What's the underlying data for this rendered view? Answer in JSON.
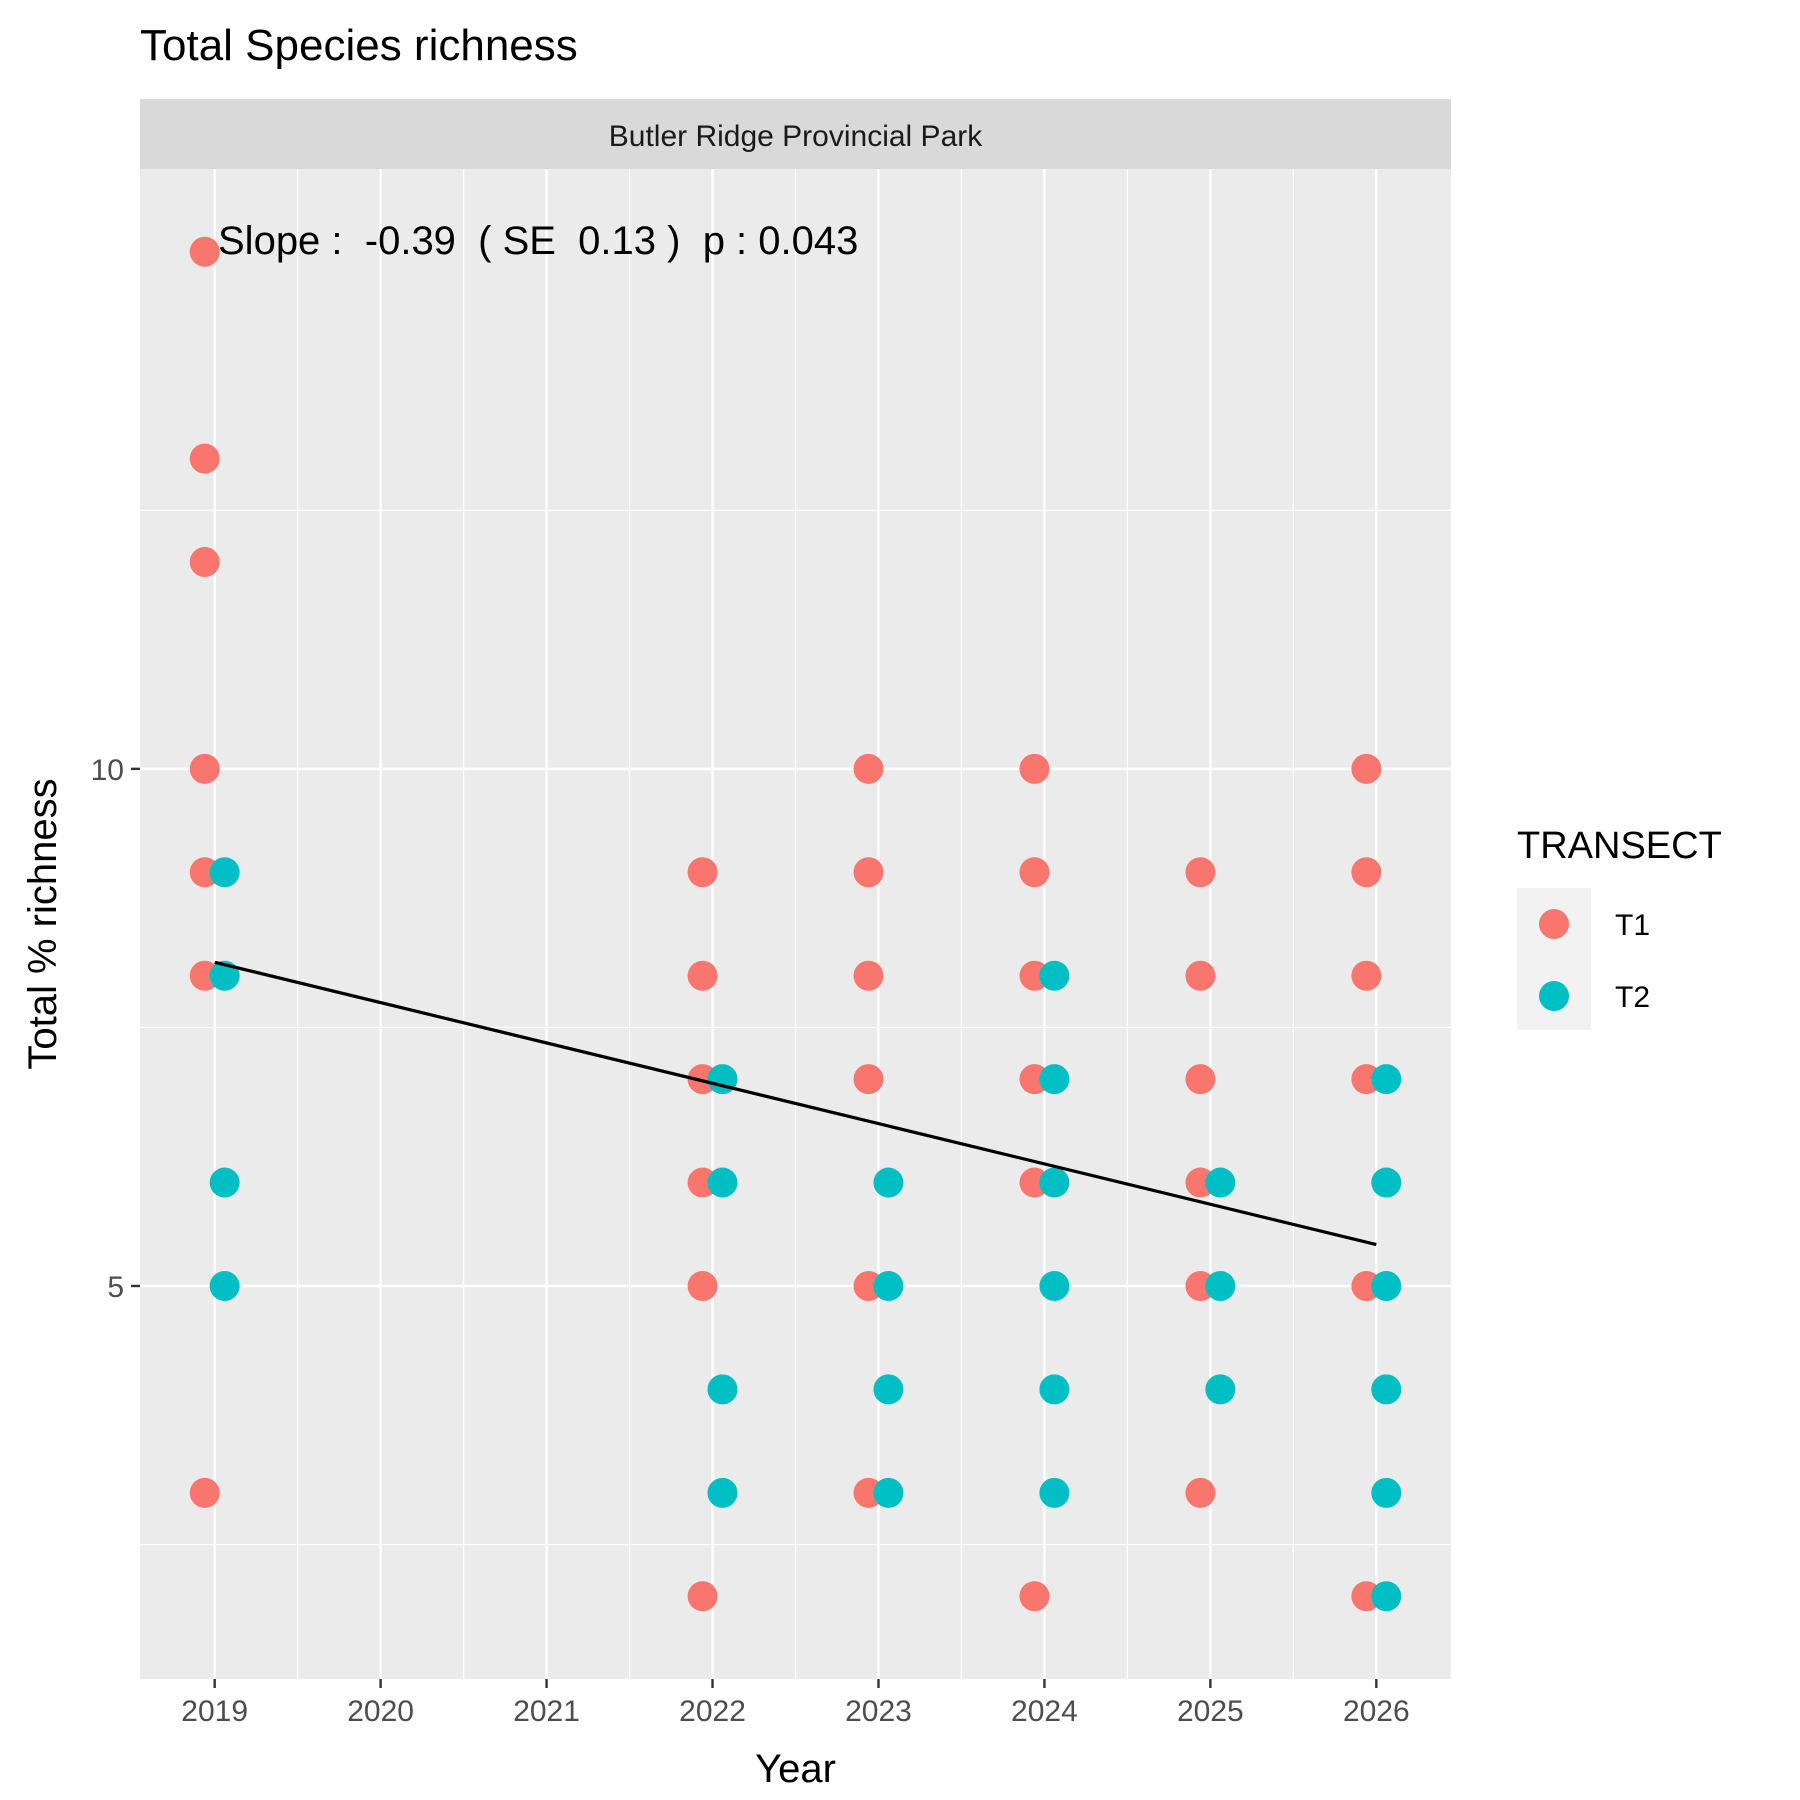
{
  "chart_data": {
    "type": "scatter",
    "title": "Total Species richness",
    "facet_label": "Butler Ridge Provincial Park",
    "xlabel": "Year",
    "ylabel": "Total % richness",
    "x_ticks": [
      2019,
      2020,
      2021,
      2022,
      2023,
      2024,
      2025,
      2026
    ],
    "y_ticks": [
      5,
      10
    ],
    "xlim": [
      2018.55,
      2026.45
    ],
    "ylim": [
      1.2,
      15.8
    ],
    "grid": true,
    "legend": {
      "title": "TRANSECT",
      "position": "right"
    },
    "annotation": "Slope :  -0.39  ( SE  0.13 )  p : 0.043",
    "series": [
      {
        "name": "T1",
        "color": "#F8766D",
        "offset": -0.06,
        "points": [
          [
            2019,
            15
          ],
          [
            2019,
            13
          ],
          [
            2019,
            12
          ],
          [
            2019,
            10
          ],
          [
            2019,
            9
          ],
          [
            2019,
            8
          ],
          [
            2019,
            3
          ],
          [
            2022,
            9
          ],
          [
            2022,
            8
          ],
          [
            2022,
            7
          ],
          [
            2022,
            6
          ],
          [
            2022,
            5
          ],
          [
            2022,
            2
          ],
          [
            2023,
            10
          ],
          [
            2023,
            9
          ],
          [
            2023,
            8
          ],
          [
            2023,
            7
          ],
          [
            2023,
            5
          ],
          [
            2023,
            3
          ],
          [
            2024,
            10
          ],
          [
            2024,
            9
          ],
          [
            2024,
            8
          ],
          [
            2024,
            7
          ],
          [
            2024,
            6
          ],
          [
            2024,
            2
          ],
          [
            2025,
            9
          ],
          [
            2025,
            8
          ],
          [
            2025,
            7
          ],
          [
            2025,
            6
          ],
          [
            2025,
            5
          ],
          [
            2025,
            3
          ],
          [
            2026,
            10
          ],
          [
            2026,
            9
          ],
          [
            2026,
            8
          ],
          [
            2026,
            7
          ],
          [
            2026,
            5
          ],
          [
            2026,
            2
          ]
        ]
      },
      {
        "name": "T2",
        "color": "#00BFC4",
        "offset": 0.06,
        "points": [
          [
            2019,
            9
          ],
          [
            2019,
            8
          ],
          [
            2019,
            6
          ],
          [
            2019,
            5
          ],
          [
            2022,
            7
          ],
          [
            2022,
            6
          ],
          [
            2022,
            4
          ],
          [
            2022,
            3
          ],
          [
            2023,
            6
          ],
          [
            2023,
            5
          ],
          [
            2023,
            4
          ],
          [
            2023,
            3
          ],
          [
            2024,
            8
          ],
          [
            2024,
            7
          ],
          [
            2024,
            6
          ],
          [
            2024,
            5
          ],
          [
            2024,
            4
          ],
          [
            2024,
            3
          ],
          [
            2025,
            6
          ],
          [
            2025,
            5
          ],
          [
            2025,
            4
          ],
          [
            2026,
            7
          ],
          [
            2026,
            6
          ],
          [
            2026,
            5
          ],
          [
            2026,
            4
          ],
          [
            2026,
            3
          ],
          [
            2026,
            2
          ]
        ]
      }
    ],
    "trend_line": {
      "color": "#000000",
      "from": [
        2019,
        8.13
      ],
      "to": [
        2026,
        5.4
      ]
    }
  }
}
